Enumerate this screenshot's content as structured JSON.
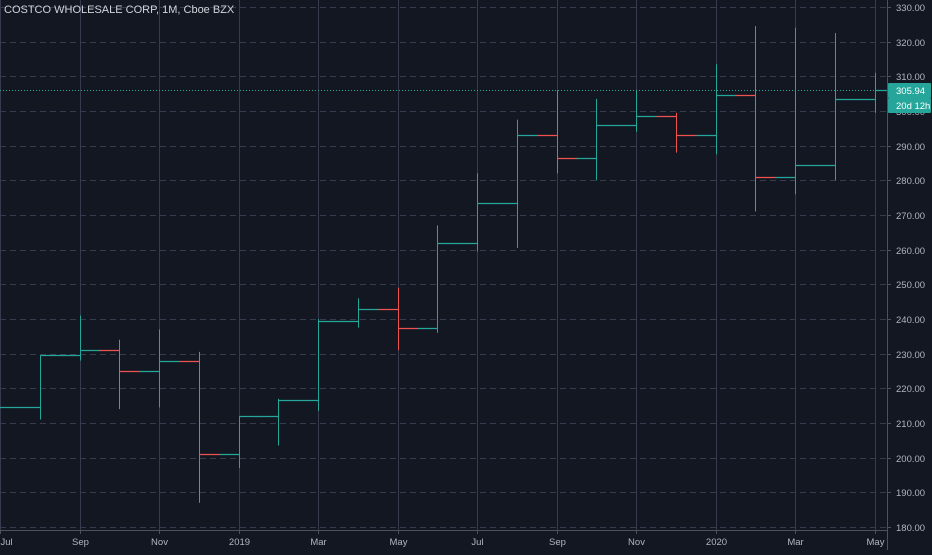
{
  "chart_data": {
    "type": "ohlc",
    "title": "COSTCO WHOLESALE CORP, 1M, Cboe BZX",
    "ylim": [
      180,
      330
    ],
    "yticks": [
      180,
      190,
      200,
      210,
      220,
      230,
      240,
      250,
      260,
      270,
      280,
      290,
      300,
      310,
      320,
      330
    ],
    "ytick_labels": [
      "180.00",
      "190.00",
      "200.00",
      "210.00",
      "220.00",
      "230.00",
      "240.00",
      "250.00",
      "260.00",
      "270.00",
      "280.00",
      "290.00",
      "300.00",
      "310.00",
      "320.00",
      "330.00"
    ],
    "xtick_labels": [
      "Jul",
      "Sep",
      "Nov",
      "2019",
      "Mar",
      "May",
      "Jul",
      "Sep",
      "Nov",
      "2020",
      "Mar",
      "May"
    ],
    "xtick_index": [
      0,
      2,
      4,
      6,
      8,
      10,
      12,
      14,
      16,
      18,
      20,
      22
    ],
    "grid": true,
    "bars": [
      {
        "o": 214.5,
        "h": 214.5,
        "l": 214.5,
        "c": 214.5
      },
      {
        "o": 214.5,
        "h": 229.5,
        "l": 211.0,
        "c": 229.5
      },
      {
        "o": 229.5,
        "h": 241.0,
        "l": 228.0,
        "c": 231.0
      },
      {
        "o": 231.0,
        "h": 234.0,
        "l": 214.0,
        "c": 225.0
      },
      {
        "o": 225.0,
        "h": 237.0,
        "l": 214.5,
        "c": 228.0
      },
      {
        "o": 228.0,
        "h": 230.5,
        "l": 187.0,
        "c": 201.0
      },
      {
        "o": 201.0,
        "h": 212.0,
        "l": 197.0,
        "c": 212.0
      },
      {
        "o": 212.0,
        "h": 217.0,
        "l": 203.5,
        "c": 216.5
      },
      {
        "o": 216.5,
        "h": 240.0,
        "l": 213.5,
        "c": 239.5
      },
      {
        "o": 239.5,
        "h": 246.0,
        "l": 237.5,
        "c": 243.0
      },
      {
        "o": 243.0,
        "h": 249.0,
        "l": 231.0,
        "c": 237.5
      },
      {
        "o": 237.5,
        "h": 267.0,
        "l": 236.0,
        "c": 262.0
      },
      {
        "o": 262.0,
        "h": 282.0,
        "l": 259.5,
        "c": 273.5
      },
      {
        "o": 273.5,
        "h": 297.5,
        "l": 260.5,
        "c": 293.0
      },
      {
        "o": 293.0,
        "h": 306.0,
        "l": 282.0,
        "c": 286.5
      },
      {
        "o": 286.5,
        "h": 303.5,
        "l": 280.0,
        "c": 296.0
      },
      {
        "o": 296.0,
        "h": 306.0,
        "l": 294.0,
        "c": 298.5
      },
      {
        "o": 298.5,
        "h": 299.5,
        "l": 288.0,
        "c": 293.0
      },
      {
        "o": 293.0,
        "h": 313.5,
        "l": 287.5,
        "c": 304.5
      },
      {
        "o": 304.5,
        "h": 324.5,
        "l": 271.0,
        "c": 281.0
      },
      {
        "o": 281.0,
        "h": 324.0,
        "l": 276.0,
        "c": 284.5
      },
      {
        "o": 284.5,
        "h": 322.5,
        "l": 280.0,
        "c": 303.5
      },
      {
        "o": 303.5,
        "h": 311.0,
        "l": 299.5,
        "c": 305.94
      }
    ],
    "last_price": 305.94,
    "last_price_label": "305.94",
    "countdown_label": "20d 12h",
    "colors": {
      "background": "#131722",
      "up": "#26a69a",
      "down": "#ef5350",
      "grid": "#363c4e",
      "axis_text": "#b2b5be",
      "price_line": "#26a69a"
    }
  }
}
